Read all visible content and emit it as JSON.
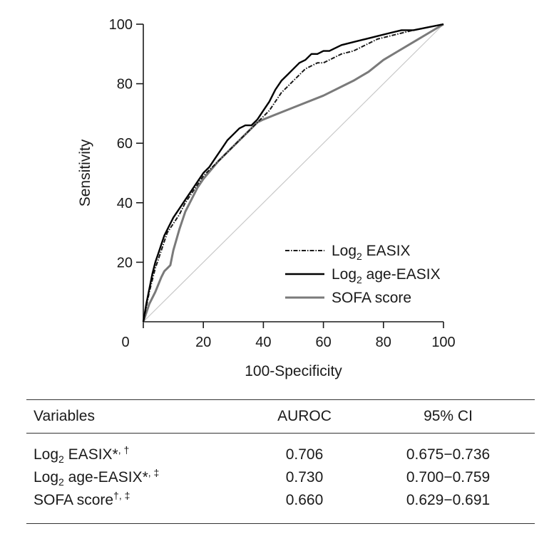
{
  "chart_data": {
    "type": "line",
    "xlabel": "100-Specificity",
    "ylabel": "Sensitivity",
    "xlim": [
      0,
      100
    ],
    "ylim": [
      0,
      100
    ],
    "x_ticks": [
      0,
      20,
      40,
      60,
      80,
      100
    ],
    "y_ticks": [
      20,
      40,
      60,
      80,
      100
    ],
    "y_tick_labels": [
      "20",
      "40",
      "60",
      "80",
      "100"
    ],
    "x_tick_labels": [
      "0",
      "20",
      "40",
      "60",
      "80",
      "100"
    ],
    "grid": false,
    "legend_position": "bottom-right",
    "series": [
      {
        "name": "Log",
        "name_sub": "2",
        "name_rest": " EASIX",
        "style": "dash-dot",
        "color": "#1a1a1a",
        "points": [
          [
            0,
            0
          ],
          [
            1,
            5
          ],
          [
            2,
            10
          ],
          [
            3,
            14
          ],
          [
            4,
            18
          ],
          [
            5,
            21
          ],
          [
            6,
            24
          ],
          [
            7,
            27
          ],
          [
            8,
            30
          ],
          [
            10,
            33
          ],
          [
            12,
            36
          ],
          [
            14,
            40
          ],
          [
            16,
            43
          ],
          [
            18,
            46
          ],
          [
            20,
            49
          ],
          [
            22,
            51
          ],
          [
            24,
            53
          ],
          [
            26,
            55
          ],
          [
            28,
            57
          ],
          [
            30,
            59
          ],
          [
            32,
            61
          ],
          [
            34,
            63
          ],
          [
            36,
            65
          ],
          [
            38,
            67
          ],
          [
            40,
            69
          ],
          [
            42,
            71
          ],
          [
            44,
            74
          ],
          [
            46,
            77
          ],
          [
            48,
            79
          ],
          [
            50,
            81
          ],
          [
            52,
            83
          ],
          [
            54,
            85
          ],
          [
            56,
            86
          ],
          [
            58,
            87
          ],
          [
            60,
            87
          ],
          [
            62,
            88
          ],
          [
            64,
            89
          ],
          [
            66,
            90
          ],
          [
            70,
            91
          ],
          [
            74,
            93
          ],
          [
            78,
            95
          ],
          [
            82,
            96
          ],
          [
            86,
            97
          ],
          [
            90,
            98
          ],
          [
            95,
            99
          ],
          [
            100,
            100
          ]
        ]
      },
      {
        "name": "Log",
        "name_sub": "2",
        "name_rest": " age-EASIX",
        "style": "solid",
        "color": "#000000",
        "points": [
          [
            0,
            0
          ],
          [
            1,
            6
          ],
          [
            2,
            11
          ],
          [
            3,
            16
          ],
          [
            4,
            20
          ],
          [
            5,
            23
          ],
          [
            6,
            26
          ],
          [
            7,
            29
          ],
          [
            8,
            31
          ],
          [
            10,
            35
          ],
          [
            12,
            38
          ],
          [
            14,
            41
          ],
          [
            16,
            44
          ],
          [
            18,
            47
          ],
          [
            20,
            50
          ],
          [
            22,
            52
          ],
          [
            24,
            55
          ],
          [
            26,
            58
          ],
          [
            28,
            61
          ],
          [
            30,
            63
          ],
          [
            32,
            65
          ],
          [
            34,
            66
          ],
          [
            36,
            66
          ],
          [
            38,
            68
          ],
          [
            40,
            71
          ],
          [
            42,
            74
          ],
          [
            44,
            78
          ],
          [
            46,
            81
          ],
          [
            48,
            83
          ],
          [
            50,
            85
          ],
          [
            52,
            87
          ],
          [
            54,
            88
          ],
          [
            56,
            90
          ],
          [
            58,
            90
          ],
          [
            60,
            91
          ],
          [
            62,
            91
          ],
          [
            64,
            92
          ],
          [
            66,
            93
          ],
          [
            70,
            94
          ],
          [
            74,
            95
          ],
          [
            78,
            96
          ],
          [
            82,
            97
          ],
          [
            86,
            98
          ],
          [
            90,
            98
          ],
          [
            95,
            99
          ],
          [
            100,
            100
          ]
        ]
      },
      {
        "name": "SOFA score",
        "style": "solid-gray",
        "color": "#7a7a7a",
        "points": [
          [
            0,
            0
          ],
          [
            2,
            6
          ],
          [
            4,
            10
          ],
          [
            6,
            15
          ],
          [
            7,
            17
          ],
          [
            8,
            18
          ],
          [
            9,
            19
          ],
          [
            10,
            24
          ],
          [
            12,
            31
          ],
          [
            14,
            37
          ],
          [
            16,
            41
          ],
          [
            18,
            45
          ],
          [
            20,
            48
          ],
          [
            25,
            54
          ],
          [
            30,
            59
          ],
          [
            35,
            64
          ],
          [
            38,
            67
          ],
          [
            40,
            68
          ],
          [
            50,
            72
          ],
          [
            60,
            76
          ],
          [
            70,
            81
          ],
          [
            75,
            84
          ],
          [
            80,
            88
          ],
          [
            85,
            91
          ],
          [
            90,
            94
          ],
          [
            95,
            97
          ],
          [
            100,
            100
          ]
        ]
      }
    ],
    "reference_line": {
      "from": [
        0,
        0
      ],
      "to": [
        100,
        100
      ],
      "color": "#c8c8c8"
    }
  },
  "table": {
    "headers": [
      "Variables",
      "AUROC",
      "95% CI"
    ],
    "rows": [
      {
        "var_main": "Log",
        "var_sub": "2",
        "var_rest": " EASIX*",
        "var_sup": ", †",
        "auroc": "0.706",
        "ci": "0.675−0.736"
      },
      {
        "var_main": "Log",
        "var_sub": "2",
        "var_rest": " age-EASIX*",
        "var_sup": ", ‡",
        "auroc": "0.730",
        "ci": "0.700−0.759"
      },
      {
        "var_main": "SOFA score",
        "var_sub": "",
        "var_rest": "",
        "var_sup": "†, ‡",
        "auroc": "0.660",
        "ci": "0.629−0.691"
      }
    ]
  }
}
